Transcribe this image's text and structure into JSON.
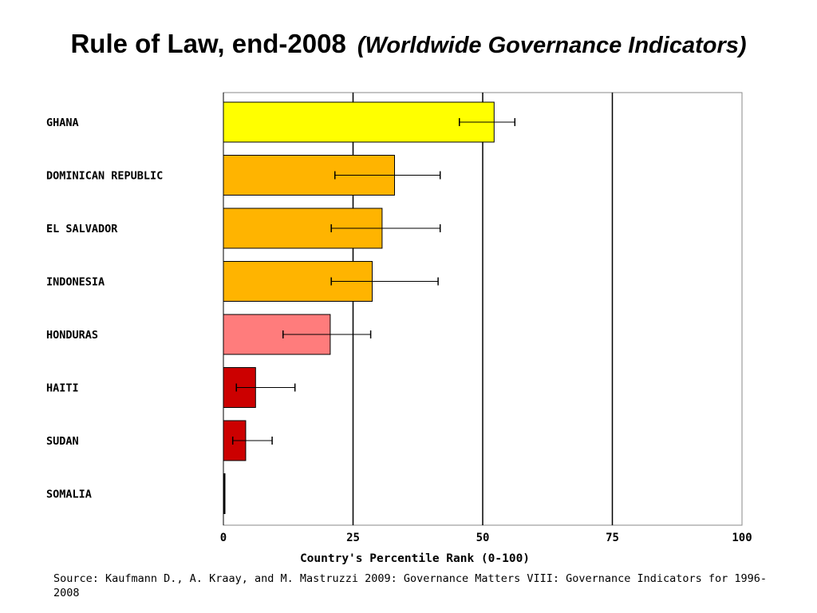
{
  "title": {
    "main": "Rule of Law, end-2008",
    "subtitle": "(Worldwide Governance Indicators)"
  },
  "source_note": "Source: Kaufmann D., A. Kraay, and M. Mastruzzi 2009: Governance Matters VIII: Governance Indicators for 1996-2008",
  "chart_data": {
    "type": "bar",
    "orientation": "horizontal",
    "title": "Rule of Law, end-2008",
    "xlabel": "Country's Percentile Rank (0-100)",
    "ylabel": "",
    "xlim": [
      0,
      100
    ],
    "xticks": [
      0,
      25,
      50,
      75,
      100
    ],
    "grid": true,
    "categories": [
      "GHANA",
      "DOMINICAN REPUBLIC",
      "EL SALVADOR",
      "INDONESIA",
      "HONDURAS",
      "HAITI",
      "SUDAN",
      "SOMALIA"
    ],
    "values": [
      52.2,
      33.0,
      30.6,
      28.7,
      20.6,
      6.2,
      4.3,
      0.3
    ],
    "error_low": [
      45.5,
      21.5,
      20.8,
      20.8,
      11.5,
      2.5,
      1.8,
      null
    ],
    "error_high": [
      56.2,
      41.8,
      41.8,
      41.4,
      28.4,
      13.8,
      9.4,
      null
    ],
    "colors": [
      "#ffff00",
      "#ffb400",
      "#ffb400",
      "#ffb400",
      "#ff7c7c",
      "#cc0000",
      "#cc0000",
      "#000000"
    ]
  }
}
